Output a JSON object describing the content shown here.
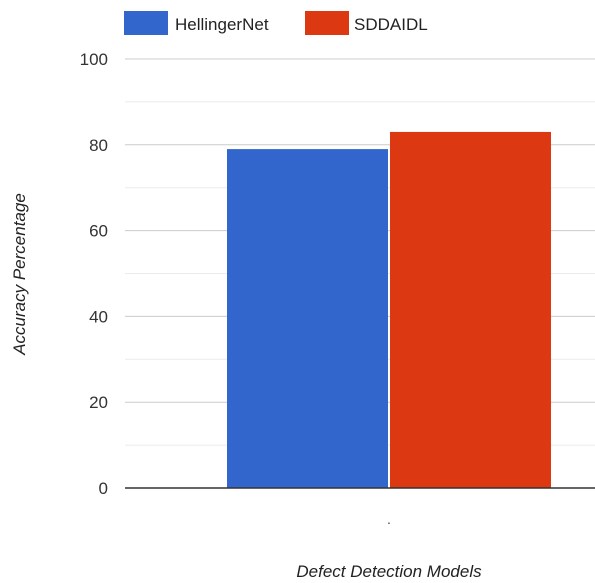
{
  "chart_data": {
    "type": "bar",
    "categories": [
      "."
    ],
    "series": [
      {
        "name": "HellingerNet",
        "values": [
          79
        ],
        "color": "#3366cc"
      },
      {
        "name": "SDDAIDL",
        "values": [
          83
        ],
        "color": "#dc3912"
      }
    ],
    "xlabel": "Defect Detection Models",
    "ylabel": "Accuracy Percentage",
    "ylim": [
      0,
      100
    ],
    "yticks": [
      0,
      20,
      40,
      60,
      80,
      100
    ],
    "grid": true,
    "legend": "top"
  }
}
